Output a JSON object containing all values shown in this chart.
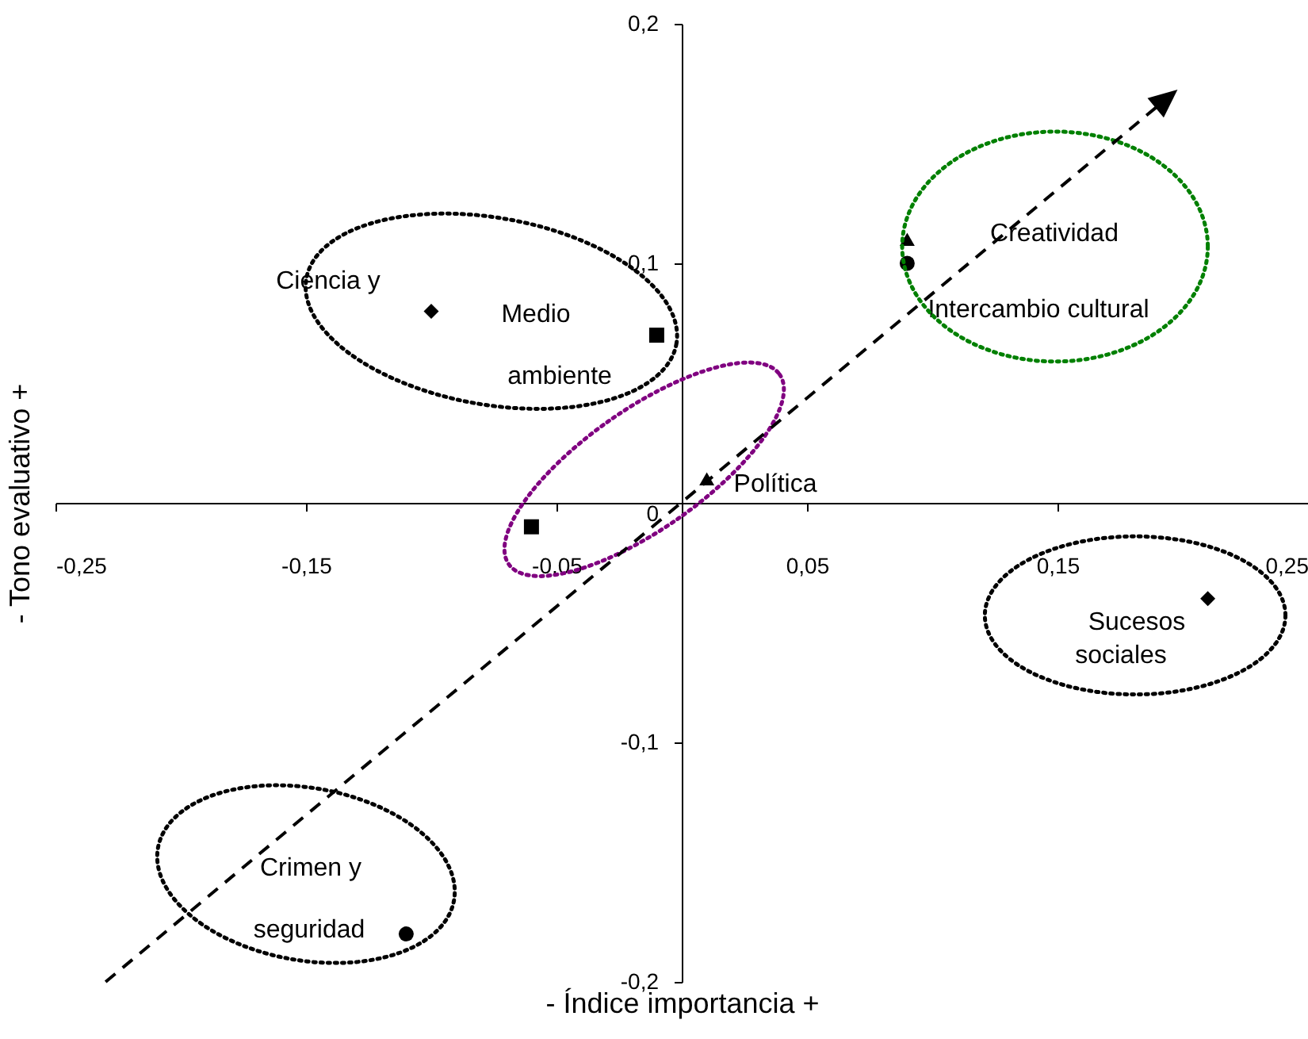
{
  "chart_data": {
    "type": "scatter",
    "xlabel": "- Índice importancia +",
    "ylabel": "- Tono evaluativo +",
    "xlim": [
      -0.25,
      0.25
    ],
    "ylim": [
      -0.2,
      0.2
    ],
    "xticks": [
      {
        "value": -0.25,
        "label": "-0,25"
      },
      {
        "value": -0.15,
        "label": "-0,15"
      },
      {
        "value": -0.05,
        "label": "-0,05"
      },
      {
        "value": 0.05,
        "label": "0,05"
      },
      {
        "value": 0.15,
        "label": "0,15"
      },
      {
        "value": 0.25,
        "label": "0,25"
      }
    ],
    "yticks": [
      {
        "value": -0.2,
        "label": "-0,2"
      },
      {
        "value": -0.1,
        "label": "-0,1"
      },
      0,
      {
        "value": 0.1,
        "label": "0,1"
      },
      {
        "value": 0.2,
        "label": "0,2"
      }
    ],
    "series": [
      {
        "marker": "diamond",
        "color": "#000000",
        "x": [
          -0.1,
          0.21
        ],
        "values": [
          0.08,
          -0.04
        ]
      },
      {
        "marker": "square",
        "color": "#000000",
        "x": [
          -0.01,
          -0.06
        ],
        "values": [
          0.07,
          -0.01
        ]
      },
      {
        "marker": "triangle",
        "color": "#000000",
        "x": [
          0.01,
          0.09
        ],
        "values": [
          0.01,
          0.11
        ]
      },
      {
        "marker": "circle",
        "color": "#000000",
        "x": [
          0.09,
          -0.11
        ],
        "values": [
          0.1,
          -0.18
        ]
      }
    ],
    "annotations": [
      "Ciencia y",
      "Medio",
      "ambiente",
      "Creatividad",
      "Intercambio cultural",
      "Política",
      "Sucesos",
      "sociales",
      "Crimen y",
      "seguridad"
    ]
  }
}
